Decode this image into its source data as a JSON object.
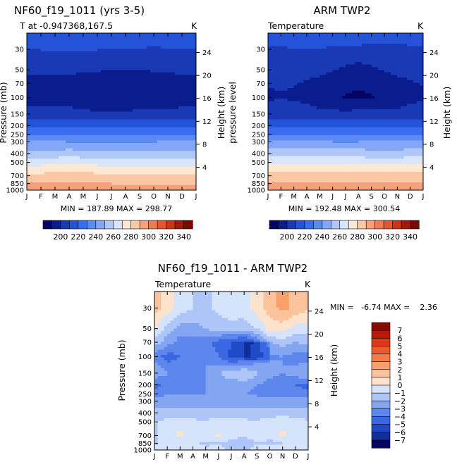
{
  "chart_data": [
    {
      "id": "model",
      "type": "heatmap",
      "title": "NF60_f19_1011 (yrs 3-5)",
      "subtitle": "T at -0.947368,167.5",
      "units": "K",
      "ylabel": "Pressure (mb)",
      "ylabel_right": "Height (km)",
      "x_ticks": [
        "J",
        "F",
        "M",
        "A",
        "M",
        "J",
        "J",
        "A",
        "S",
        "O",
        "N",
        "D",
        "J"
      ],
      "y_ticks": [
        30,
        50,
        70,
        100,
        150,
        200,
        250,
        300,
        400,
        500,
        700,
        850,
        1000
      ],
      "height_ticks": [
        4,
        8,
        12,
        16,
        20,
        24
      ],
      "ylim": [
        1000,
        20
      ],
      "stats": "MIN = 187.89 MAX = 298.77",
      "levels": [
        200,
        220,
        240,
        260,
        280,
        300,
        320,
        340
      ],
      "profile": {
        "pressure": [
          20,
          30,
          50,
          70,
          100,
          150,
          200,
          250,
          300,
          400,
          500,
          700,
          850,
          1000
        ],
        "temperature": [
          215,
          210,
          202,
          193,
          193,
          203,
          218,
          228,
          240,
          254,
          266,
          283,
          290,
          297
        ]
      }
    },
    {
      "id": "obs",
      "type": "heatmap",
      "title": "ARM TWP2",
      "subtitle": "Temperature",
      "units": "K",
      "ylabel": "pressure level",
      "ylabel_right": "Height (km)",
      "x_ticks": [
        "J",
        "F",
        "M",
        "A",
        "M",
        "J",
        "J",
        "A",
        "S",
        "O",
        "N",
        "D",
        "J"
      ],
      "y_ticks": [
        30,
        50,
        70,
        100,
        150,
        200,
        250,
        300,
        400,
        500,
        700,
        850,
        1000
      ],
      "height_ticks": [
        4,
        8,
        12,
        16,
        20,
        24
      ],
      "ylim": [
        1000,
        20
      ],
      "stats": "MIN = 192.48 MAX = 300.54",
      "levels": [
        200,
        220,
        240,
        260,
        280,
        300,
        320,
        340
      ],
      "profile": {
        "pressure": [
          20,
          30,
          50,
          70,
          100,
          150,
          200,
          250,
          300,
          400,
          500,
          700,
          850,
          1000
        ],
        "temperature": [
          214,
          209,
          203,
          196,
          194,
          203,
          218,
          229,
          241,
          255,
          267,
          284,
          291,
          298
        ]
      }
    },
    {
      "id": "diff",
      "type": "heatmap",
      "title": "NF60_f19_1011 - ARM TWP2",
      "subtitle": "Temperature",
      "units": "K",
      "ylabel": "Pressure (mb)",
      "ylabel_right": "Height (km)",
      "x_ticks": [
        "J",
        "F",
        "M",
        "A",
        "M",
        "J",
        "J",
        "A",
        "S",
        "O",
        "N",
        "D",
        "J"
      ],
      "y_ticks": [
        30,
        50,
        70,
        100,
        150,
        200,
        250,
        300,
        400,
        500,
        700,
        850,
        1000
      ],
      "height_ticks": [
        4,
        8,
        12,
        16,
        20,
        24
      ],
      "ylim": [
        1000,
        20
      ],
      "stats": "MIN =   -6.74 MAX =    2.36",
      "levels": [
        -7,
        -6,
        -5,
        -4,
        -3,
        -2,
        -1,
        0,
        1,
        2,
        3,
        4,
        5,
        6,
        7
      ],
      "cells": {
        "rows": [
          {
            "pressure": 30,
            "values": [
              1.5,
              0.5,
              -0.5,
              -1.0,
              -1.2,
              -0.8,
              -0.3,
              -0.5,
              0.5,
              1.5,
              2.3,
              1.8,
              1.2
            ]
          },
          {
            "pressure": 50,
            "values": [
              0.3,
              -1.5,
              -2.5,
              -2.5,
              -2.0,
              -1.5,
              -1.5,
              -1.5,
              -1.0,
              0.4,
              0.5,
              -0.5,
              -0.5
            ]
          },
          {
            "pressure": 70,
            "values": [
              -1.5,
              -2.5,
              -3.5,
              -3.5,
              -3.5,
              -4.5,
              -5.0,
              -5.5,
              -4.0,
              -2.0,
              -1.5,
              -2.0,
              -1.5
            ]
          },
          {
            "pressure": 100,
            "values": [
              -3.5,
              -4.5,
              -4.0,
              -3.5,
              -3.0,
              -4.0,
              -5.2,
              -5.0,
              -3.8,
              -3.2,
              -3.0,
              -3.5,
              -3.5
            ]
          },
          {
            "pressure": 150,
            "values": [
              -2.0,
              -3.0,
              -3.5,
              -3.5,
              -3.0,
              -2.0,
              -1.5,
              -1.0,
              -1.8,
              -2.5,
              -3.0,
              -2.5,
              -2.0
            ]
          },
          {
            "pressure": 200,
            "values": [
              -4.5,
              -3.5,
              -3.0,
              -3.5,
              -3.0,
              -2.5,
              -2.5,
              -2.5,
              -3.0,
              -3.5,
              -4.0,
              -4.0,
              -4.5
            ]
          },
          {
            "pressure": 250,
            "values": [
              -3.5,
              -3.0,
              -3.0,
              -3.0,
              -3.0,
              -3.0,
              -3.0,
              -3.0,
              -3.2,
              -3.5,
              -3.5,
              -3.5,
              -3.5
            ]
          },
          {
            "pressure": 300,
            "values": [
              -2.5,
              -2.5,
              -2.5,
              -2.5,
              -2.5,
              -2.5,
              -2.5,
              -2.5,
              -2.5,
              -2.5,
              -2.5,
              -2.5,
              -2.5
            ]
          },
          {
            "pressure": 400,
            "values": [
              -1.5,
              -1.5,
              -1.5,
              -1.5,
              -1.5,
              -1.5,
              -1.5,
              -1.5,
              -1.5,
              -1.5,
              -1.5,
              -1.5,
              -1.5
            ]
          },
          {
            "pressure": 500,
            "values": [
              -1.0,
              -0.8,
              -0.5,
              -0.8,
              -1.0,
              -0.5,
              -0.5,
              -0.8,
              -1.0,
              -0.5,
              -0.3,
              -0.5,
              -1.0
            ]
          },
          {
            "pressure": 700,
            "values": [
              -1.2,
              -0.5,
              0.3,
              -0.5,
              -0.5,
              0.1,
              -0.5,
              -1.0,
              -0.5,
              -0.8,
              0.3,
              -0.5,
              -1.0
            ]
          },
          {
            "pressure": 850,
            "values": [
              -1.0,
              -1.0,
              -0.8,
              -0.8,
              -1.2,
              -1.0,
              -1.5,
              -1.5,
              -1.0,
              -1.2,
              -1.0,
              -1.0,
              -1.0
            ]
          },
          {
            "pressure": 1000,
            "values": [
              -1.0,
              -0.8,
              -0.5,
              -0.5,
              -0.8,
              -0.8,
              -1.0,
              -1.0,
              -0.8,
              -0.5,
              -0.5,
              -0.8,
              -1.0
            ]
          }
        ]
      }
    }
  ],
  "colorbar_temperature": {
    "labels": [
      "200",
      "220",
      "240",
      "260",
      "280",
      "300",
      "320",
      "340"
    ],
    "colors": [
      "#040463",
      "#0a1d8f",
      "#1a3ab5",
      "#2553d8",
      "#3a6cf0",
      "#5c8af5",
      "#83a7f7",
      "#b0c8f8",
      "#d8e6fb",
      "#fde8d4",
      "#fbc8a6",
      "#f6a07c",
      "#f07a55",
      "#e35533",
      "#cc3318",
      "#a81808",
      "#7a0a00"
    ]
  },
  "colorbar_diff": {
    "labels": [
      "7",
      "6",
      "5",
      "4",
      "3",
      "2",
      "1",
      "0",
      "−1",
      "−2",
      "−3",
      "−4",
      "−5",
      "−6",
      "−7"
    ],
    "colors": [
      "#8a0a00",
      "#b81a0a",
      "#d83a18",
      "#ea5a2a",
      "#f47c46",
      "#f8a06a",
      "#fac39b",
      "#fde3cc",
      "#d6e4fb",
      "#aec6f7",
      "#84a6f2",
      "#5d87ec",
      "#3a68e2",
      "#2049c6",
      "#112f9a",
      "#040463"
    ]
  }
}
